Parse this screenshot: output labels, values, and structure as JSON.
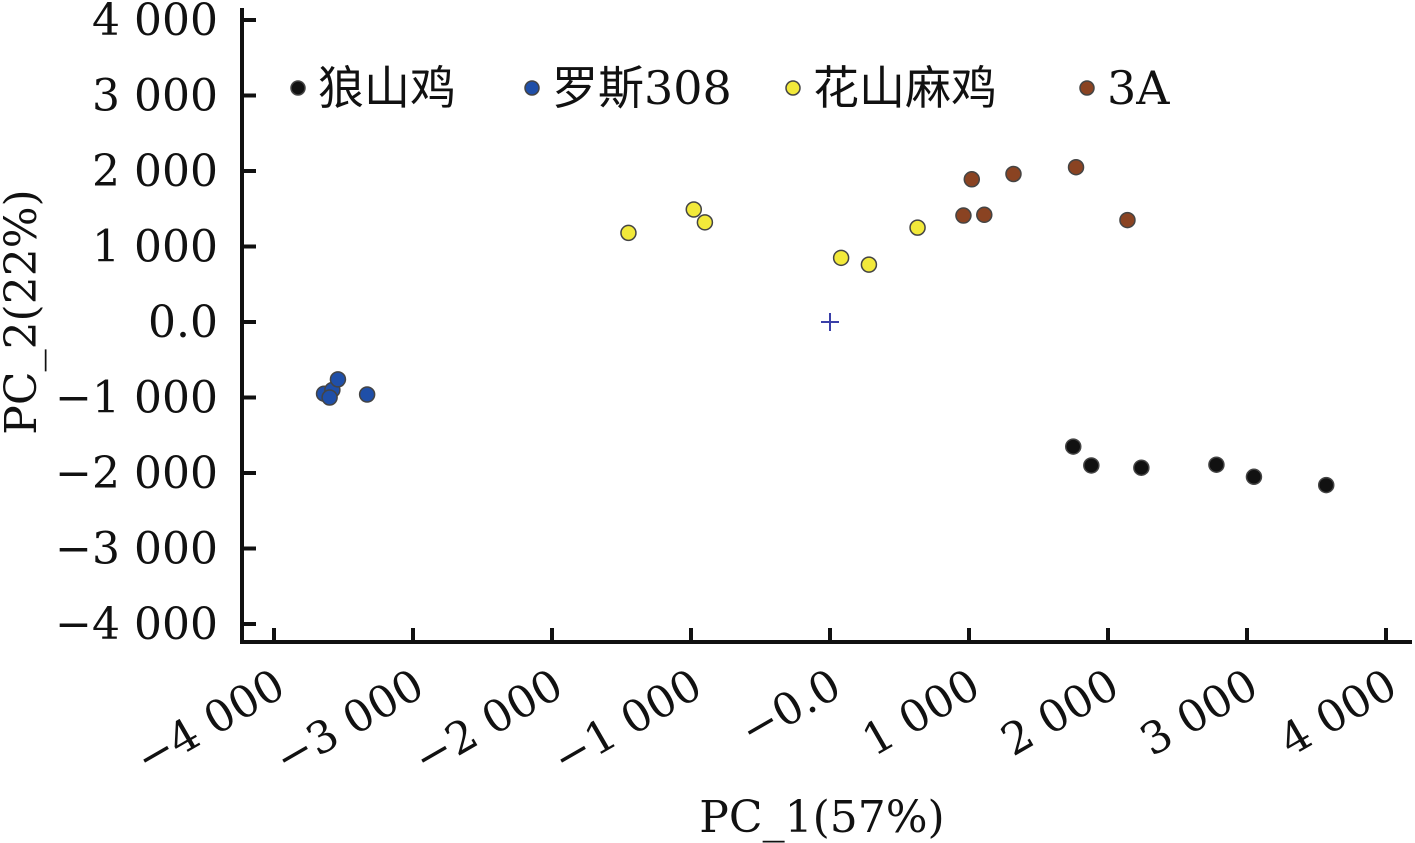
{
  "chart_data": {
    "type": "scatter",
    "title": "",
    "xlabel": "PC_1(57%)",
    "ylabel": "PC_2(22%)",
    "xlim": [
      -4000,
      4000
    ],
    "ylim": [
      -4000,
      4000
    ],
    "x_ticks": [
      -4000,
      -3000,
      -2000,
      -1000,
      0,
      1000,
      2000,
      3000,
      4000
    ],
    "x_tick_labels": [
      "−4 000",
      "−3 000",
      "−2 000",
      "−1 000",
      "−0.0",
      "1 000",
      "2 000",
      "3 000",
      "4 000"
    ],
    "y_ticks": [
      4000,
      3000,
      2000,
      1000,
      0,
      -1000,
      -2000,
      -3000,
      -4000
    ],
    "y_tick_labels": [
      "4 000",
      "3 000",
      "2 000",
      "1 000",
      "0.0",
      "−1 000",
      "−2 000",
      "−3 000",
      "−4 000"
    ],
    "grid": false,
    "legend_position": "top",
    "origin_marker": {
      "x": 0,
      "y": 0,
      "symbol": "+",
      "color": "#3a3fa8"
    },
    "series": [
      {
        "name": "狼山鸡",
        "color": "#111111",
        "points": [
          {
            "x": 1750,
            "y": -1650
          },
          {
            "x": 1880,
            "y": -1900
          },
          {
            "x": 2240,
            "y": -1930
          },
          {
            "x": 2780,
            "y": -1890
          },
          {
            "x": 3050,
            "y": -2050
          },
          {
            "x": 3570,
            "y": -2160
          }
        ]
      },
      {
        "name": "罗斯308",
        "color": "#1f4fa8",
        "points": [
          {
            "x": -3640,
            "y": -950
          },
          {
            "x": -3580,
            "y": -900
          },
          {
            "x": -3540,
            "y": -760
          },
          {
            "x": -3600,
            "y": -1000
          },
          {
            "x": -3330,
            "y": -960
          }
        ]
      },
      {
        "name": "花山麻鸡",
        "color": "#f2e93a",
        "points": [
          {
            "x": -1450,
            "y": 1180
          },
          {
            "x": -980,
            "y": 1490
          },
          {
            "x": -900,
            "y": 1320
          },
          {
            "x": 80,
            "y": 850
          },
          {
            "x": 280,
            "y": 760
          },
          {
            "x": 630,
            "y": 1250
          }
        ]
      },
      {
        "name": "3A",
        "color": "#8a4322",
        "points": [
          {
            "x": 960,
            "y": 1410
          },
          {
            "x": 1110,
            "y": 1420
          },
          {
            "x": 1020,
            "y": 1890
          },
          {
            "x": 1320,
            "y": 1960
          },
          {
            "x": 1770,
            "y": 2050
          },
          {
            "x": 2140,
            "y": 1350
          }
        ]
      }
    ]
  }
}
